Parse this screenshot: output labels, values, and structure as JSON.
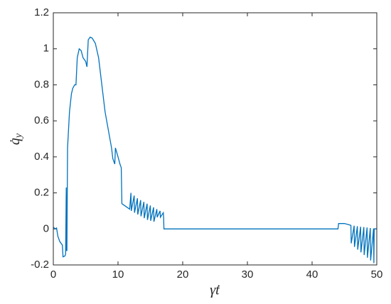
{
  "chart_data": {
    "type": "line",
    "xlabel": "γ̇t",
    "ylabel": {
      "base": "q̇",
      "sub": "y"
    },
    "xlim": [
      0,
      50
    ],
    "ylim": [
      -0.2,
      1.2
    ],
    "xticks": [
      0,
      10,
      20,
      30,
      40,
      50
    ],
    "yticks": [
      -0.2,
      0,
      0.2,
      0.4,
      0.6,
      0.8,
      1,
      1.2
    ],
    "grid": false,
    "series": [
      {
        "color": "#0072bd",
        "x": [
          0,
          0.3,
          0.5,
          0.7,
          1.0,
          1.4,
          1.5,
          1.8,
          1.9,
          2.0,
          2.05,
          2.1,
          2.2,
          2.5,
          2.8,
          3.0,
          3.3,
          3.5,
          3.7,
          4.0,
          4.3,
          4.6,
          5.0,
          5.2,
          5.4,
          5.7,
          6.0,
          6.5,
          7.0,
          7.5,
          8.0,
          8.5,
          9.0,
          9.2,
          9.5,
          9.6,
          10.0,
          10.3,
          10.5,
          10.6,
          11.0,
          11.8,
          12.0,
          12.05,
          12.5,
          12.55,
          13.0,
          13.05,
          13.5,
          13.55,
          14.0,
          14.05,
          14.5,
          14.55,
          15.0,
          15.05,
          15.5,
          15.55,
          16.0,
          16.05,
          16.5,
          16.55,
          17.0,
          17.05,
          17.1,
          44.0,
          44.1,
          45.0,
          46.0,
          46.05,
          46.5,
          46.55,
          47.0,
          47.05,
          47.5,
          47.55,
          48.0,
          48.05,
          48.5,
          48.55,
          49.0,
          49.05,
          49.5,
          49.55,
          49.6,
          50.0
        ],
        "values": [
          0.01,
          0,
          0.005,
          -0.04,
          -0.07,
          -0.09,
          -0.155,
          -0.15,
          -0.14,
          0.23,
          -0.12,
          -0.12,
          0.45,
          0.65,
          0.75,
          0.78,
          0.8,
          0.8,
          0.95,
          1.0,
          0.99,
          0.95,
          0.93,
          0.9,
          1.05,
          1.065,
          1.06,
          1.03,
          0.95,
          0.8,
          0.65,
          0.55,
          0.45,
          0.39,
          0.36,
          0.45,
          0.4,
          0.36,
          0.34,
          0.14,
          0.13,
          0.11,
          0.2,
          0.1,
          0.185,
          0.09,
          0.17,
          0.08,
          0.16,
          0.07,
          0.15,
          0.06,
          0.14,
          0.05,
          0.13,
          0.045,
          0.12,
          0.04,
          0.11,
          0.065,
          0.1,
          0.065,
          0.09,
          0.065,
          0,
          0,
          0.03,
          0.03,
          0.02,
          -0.08,
          0.018,
          -0.1,
          0.015,
          -0.115,
          0.012,
          -0.13,
          0.01,
          -0.145,
          0.008,
          -0.16,
          0.005,
          -0.175,
          0.002,
          -0.19,
          0,
          0
        ]
      }
    ]
  }
}
